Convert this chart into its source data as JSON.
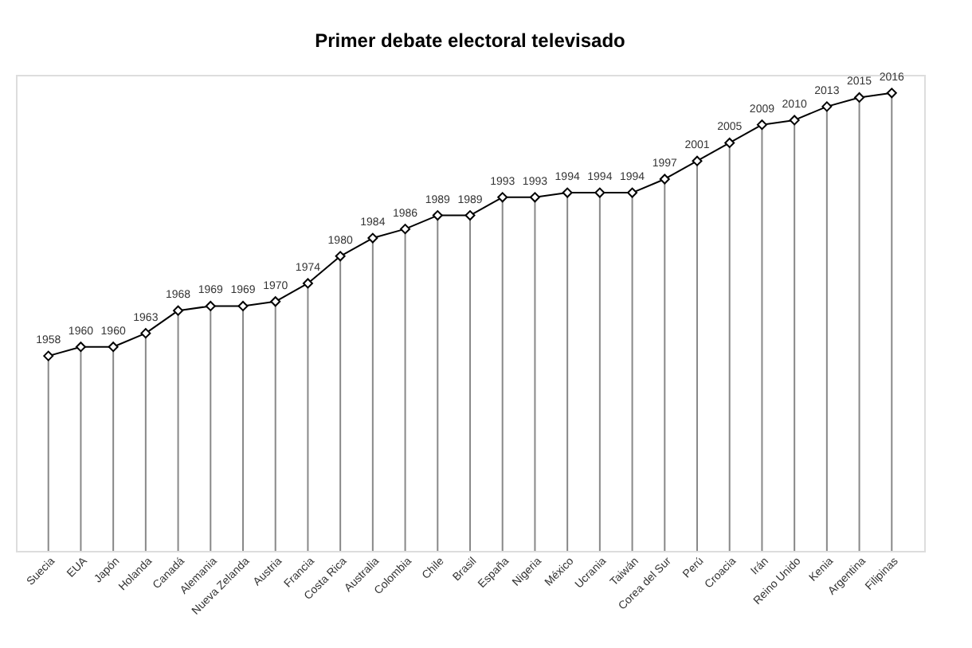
{
  "chart_data": {
    "type": "line",
    "title": "Primer debate electoral televisado",
    "categories": [
      "Suecia",
      "EUA",
      "Japón",
      "Holanda",
      "Canadá",
      "Alemania",
      "Nueva Zelanda",
      "Austria",
      "Francia",
      "Costa Rica",
      "Australia",
      "Colombia",
      "Chile",
      "Brasil",
      "España",
      "Nigeria",
      "México",
      "Ucrania",
      "Taiwán",
      "Corea del Sur",
      "Perú",
      "Croacia",
      "Irán",
      "Reino Unido",
      "Kenia",
      "Argentina",
      "Filipinas"
    ],
    "values": [
      1958,
      1960,
      1960,
      1963,
      1968,
      1969,
      1969,
      1970,
      1974,
      1980,
      1984,
      1986,
      1989,
      1989,
      1993,
      1993,
      1994,
      1994,
      1994,
      1997,
      2001,
      2005,
      2009,
      2010,
      2013,
      2015,
      2016
    ],
    "color": "#000000",
    "ylim": [
      1915,
      2020
    ],
    "data_labels": true,
    "marker": "diamond",
    "grid": "x",
    "tick_labels": "x"
  }
}
